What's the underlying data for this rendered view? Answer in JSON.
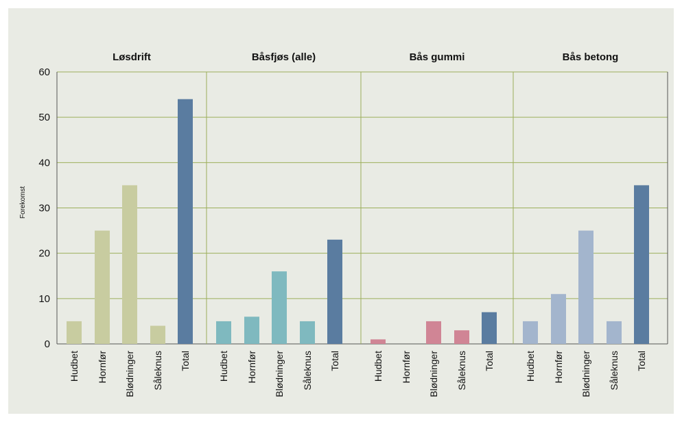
{
  "chart_data": {
    "type": "bar",
    "title": "",
    "ylabel": "Forekomst",
    "xlabel": "",
    "ylim": [
      0,
      60
    ],
    "yticks": [
      0,
      10,
      20,
      30,
      40,
      50,
      60
    ],
    "grid": true,
    "categories": [
      "Hudbet",
      "Hornfør",
      "Blødninger",
      "Såleknus",
      "Total"
    ],
    "groups": [
      {
        "name": "Løsdrift",
        "values": [
          5,
          25,
          35,
          4,
          54
        ],
        "color": "#c8cca0"
      },
      {
        "name": "Båsfjøs (alle)",
        "values": [
          5,
          6,
          16,
          5,
          23
        ],
        "color": "#7fb9bf"
      },
      {
        "name": "Bås gummi",
        "values": [
          1,
          0,
          5,
          3,
          7
        ],
        "color": "#d08595"
      },
      {
        "name": "Bås betong",
        "values": [
          5,
          11,
          25,
          5,
          35
        ],
        "color": "#a3b5cd"
      }
    ],
    "total_color": "#5a7ca0"
  },
  "colors": {
    "background": "#e9ebe4",
    "grid": "#9cae5a",
    "axis": "#555555"
  }
}
